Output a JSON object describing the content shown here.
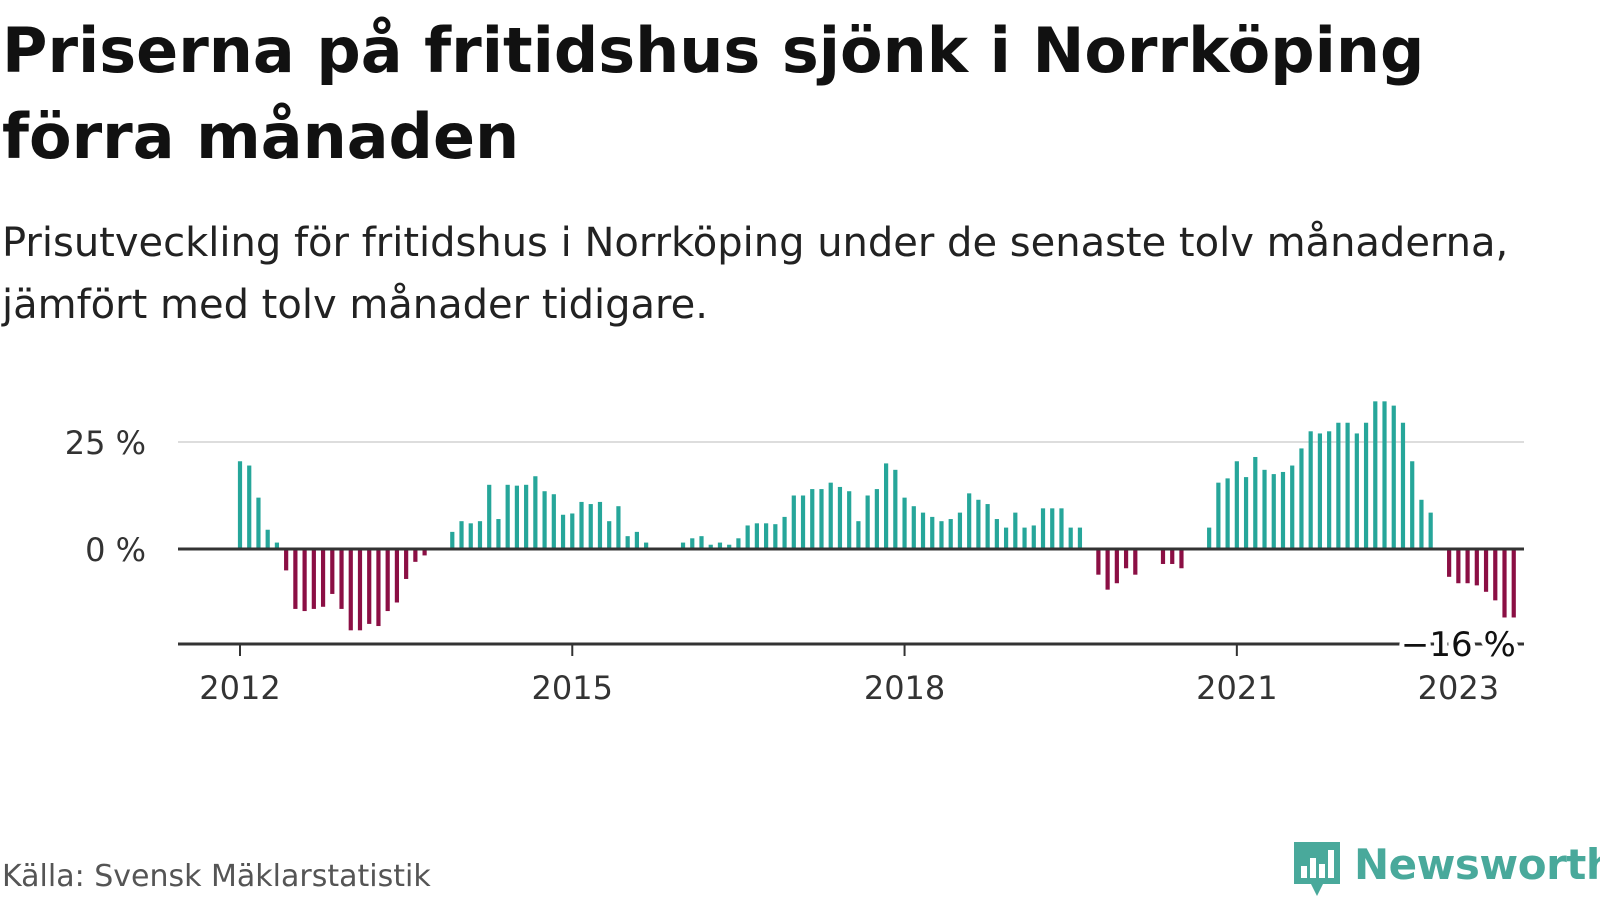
{
  "title": "Priserna på fritidshus sjönk i Norrköping förra månaden",
  "subtitle": "Prisutveckling för fritidshus i Norrköping under de senaste tolv månaderna, jämfört med tolv månader tidigare.",
  "source": "Källa: Svensk Mäklarstatistik",
  "brand": "Newsworthy",
  "colors": {
    "positive": "#26a69a",
    "negative": "#8b0f44",
    "axis": "#333333",
    "grid": "#dddddd",
    "brand": "#49a99b"
  },
  "chart_data": {
    "type": "bar",
    "title": "",
    "xlabel": "",
    "ylabel": "",
    "ylim": [
      -22,
      38
    ],
    "y_ticks": [
      0,
      25
    ],
    "y_tick_labels": [
      "0 %",
      "25 %"
    ],
    "x_ticks": [
      "2012-01",
      "2015-01",
      "2018-01",
      "2021-01",
      "2023-01"
    ],
    "x_tick_labels": [
      "2012",
      "2015",
      "2018",
      "2021",
      "2023"
    ],
    "annotation": {
      "x": "2023-01",
      "label": "−16 %"
    },
    "start_month": "2012-01",
    "series": [
      {
        "values": [
          20.5,
          19.5,
          12,
          4.5,
          1.5,
          -5,
          -14,
          -14.5,
          -14,
          -13.5,
          -10.5,
          -14,
          -19,
          -19,
          -17.5,
          -18,
          -14.5,
          -12.5,
          -7,
          -3,
          -1.5,
          0,
          0,
          4,
          6.5,
          6,
          6.5,
          15,
          7,
          15,
          14.8,
          15,
          17,
          13.5,
          12.8,
          8,
          8.3,
          11,
          10.5,
          11,
          6.5,
          10,
          3,
          4,
          1.5,
          0,
          0,
          0,
          1.5,
          2.5,
          3,
          1,
          1.5,
          1,
          2.5,
          5.5,
          6,
          6,
          5.8,
          7.5,
          12.5,
          12.5,
          14,
          14,
          15.5,
          14.5,
          13.5,
          6.5,
          12.5,
          14,
          20,
          18.5,
          12,
          10,
          8.5,
          7.5,
          6.5,
          7,
          8.5,
          13,
          11.5,
          10.5,
          7,
          5,
          8.5,
          5,
          5.5,
          9.5,
          9.5,
          9.5,
          5,
          5,
          0,
          -6,
          -9.5,
          -8,
          -4.5,
          -6,
          -0.3,
          0,
          -3.5,
          -3.5,
          -4.5,
          0,
          0,
          5,
          15.5,
          16.5,
          20.5,
          16.8,
          21.5,
          18.5,
          17.5,
          18,
          19.5,
          23.5,
          27.5,
          27,
          27.5,
          29.5,
          29.5,
          27,
          29.5,
          34.5,
          34.5,
          33.5,
          29.5,
          20.5,
          11.5,
          8.5,
          0,
          -6.5,
          -8,
          -8,
          -8.5,
          -10,
          -12,
          -16,
          -16
        ]
      }
    ]
  }
}
